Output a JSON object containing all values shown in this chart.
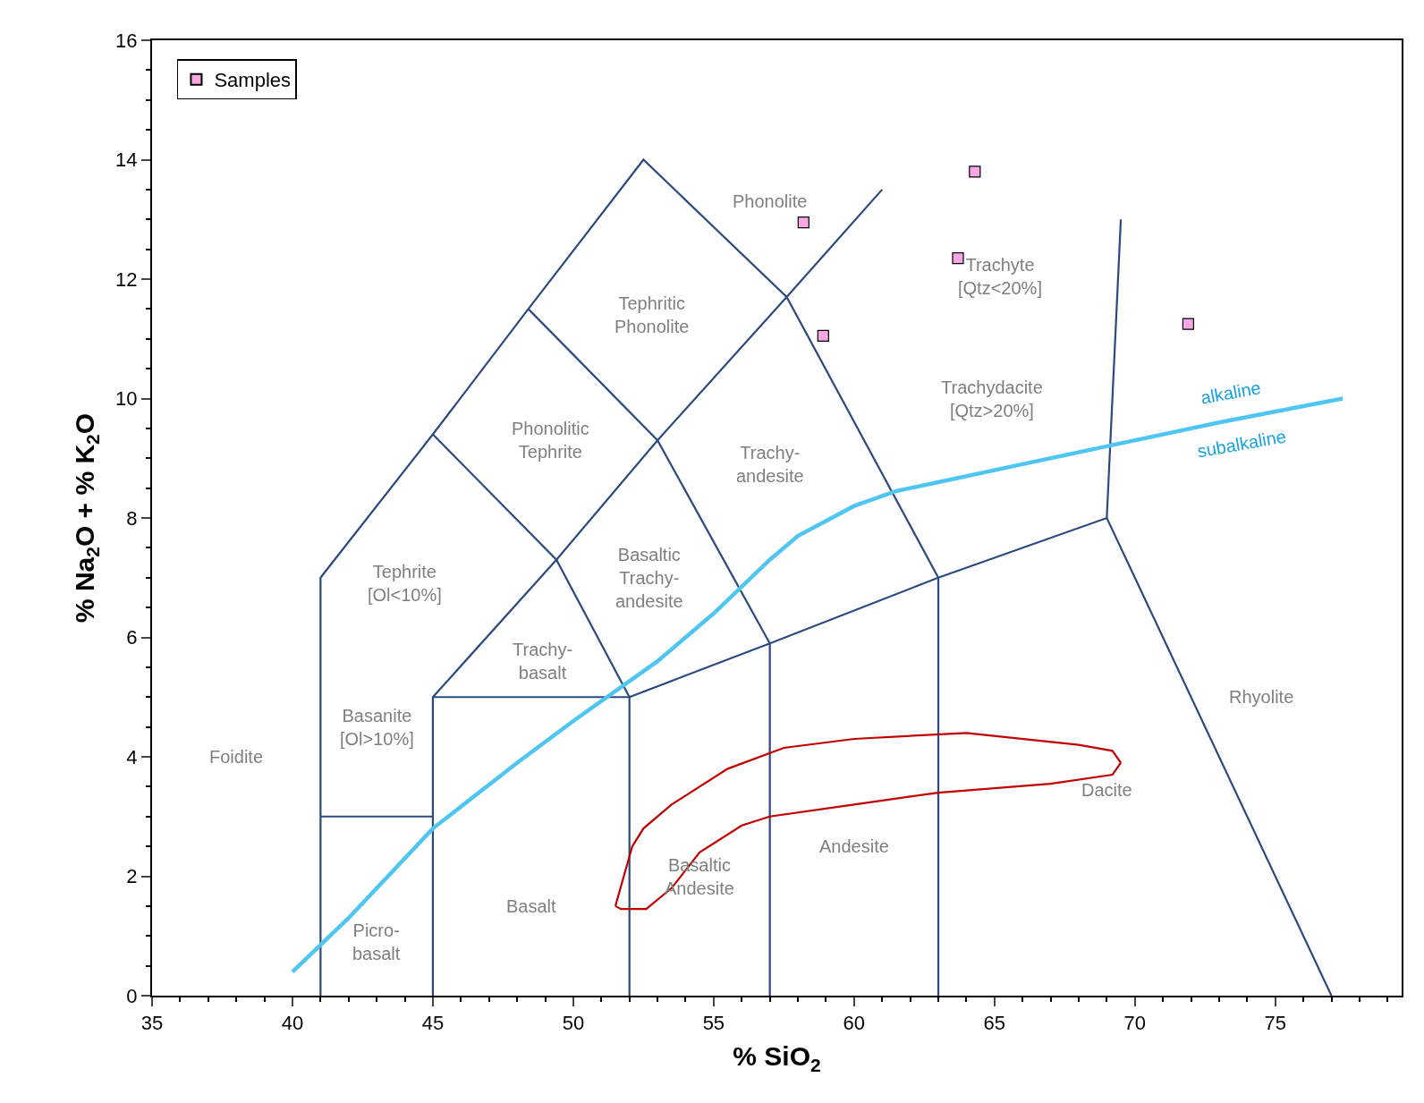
{
  "chart_data": {
    "type": "line",
    "xlabel": "% SiO$_{2}$",
    "ylabel": "% Na$_{2}$O + % K$_{2}$O",
    "xlim": [
      35,
      79.5
    ],
    "xticks": [
      35,
      40,
      45,
      50,
      55,
      60,
      65,
      70,
      75
    ],
    "ylim": [
      0,
      16
    ],
    "yticks": [
      0,
      2,
      4,
      6,
      8,
      10,
      12,
      14,
      16
    ],
    "legend": "top left",
    "line_style": "solid",
    "series": [
      {
        "type": "scatter",
        "name": "Samples",
        "marker": "square",
        "color": "#f7a8e4",
        "x": [
          58.2,
          58.9,
          63.7,
          64.3,
          71.9
        ],
        "values": [
          12.95,
          11.05,
          12.35,
          13.8,
          11.25
        ]
      },
      {
        "color": "#2a4a80",
        "x": [
          41,
          41,
          45,
          48.4,
          52.5,
          57.6,
          63
        ],
        "values": [
          0,
          7,
          9.4,
          11.5,
          14,
          11.7,
          7
        ]
      },
      {
        "color": "#2a4a80",
        "x": [
          45,
          45,
          49.4,
          53,
          57.6,
          61
        ],
        "values": [
          0,
          5,
          7.3,
          9.3,
          11.7,
          13.5
        ]
      },
      {
        "color": "#2a4a80",
        "x": [
          52,
          52,
          57,
          63,
          69,
          77
        ],
        "values": [
          0,
          5,
          5.9,
          7,
          8,
          0
        ]
      },
      {
        "color": "#2a4a80",
        "x": [
          45,
          49.4,
          52
        ],
        "values": [
          9.4,
          7.3,
          5
        ]
      },
      {
        "color": "#2a4a80",
        "x": [
          48.4,
          53,
          57
        ],
        "values": [
          11.5,
          9.3,
          5.9
        ]
      },
      {
        "color": "#2a4a80",
        "x": [
          57,
          57
        ],
        "values": [
          0,
          5.9
        ]
      },
      {
        "color": "#2a4a80",
        "x": [
          63,
          63
        ],
        "values": [
          0,
          7
        ]
      },
      {
        "color": "#2a4a80",
        "x": [
          41,
          45
        ],
        "values": [
          3,
          3
        ]
      },
      {
        "color": "#2a4a80",
        "x": [
          45,
          52
        ],
        "values": [
          5,
          5
        ]
      },
      {
        "color": "#2a4a80",
        "x": [
          69,
          69.5
        ],
        "values": [
          8,
          13
        ]
      },
      {
        "color": "#4fc6f2",
        "x": [
          40,
          42,
          45,
          48,
          50,
          53,
          55,
          57,
          58,
          60,
          61.5,
          63,
          66,
          69,
          73,
          77.4
        ],
        "values": [
          0.4,
          1.3,
          2.8,
          3.9,
          4.6,
          5.6,
          6.4,
          7.3,
          7.7,
          8.2,
          8.45,
          8.6,
          8.9,
          9.2,
          9.6,
          10
        ]
      },
      {
        "color": "#c00000",
        "x": [
          51.5,
          51.7,
          52.6,
          53.5,
          54.5,
          56,
          57,
          60,
          63,
          67,
          69.2,
          69.5
        ],
        "values": [
          1.5,
          1.45,
          1.45,
          1.8,
          2.4,
          2.85,
          3.0,
          3.2,
          3.4,
          3.55,
          3.7,
          3.9
        ]
      },
      {
        "color": "#c00000",
        "x": [
          51.5,
          51.8,
          52.1,
          52.5,
          53.5,
          55.5,
          57.5,
          60,
          64,
          68,
          69.2,
          69.5
        ],
        "values": [
          1.5,
          2.0,
          2.5,
          2.8,
          3.2,
          3.8,
          4.15,
          4.3,
          4.4,
          4.2,
          4.1,
          3.9
        ]
      }
    ],
    "annotations": [
      "Foidite",
      "Picro-\nbasalt",
      "Basalt",
      "Basaltic\nAndesite",
      "Andesite",
      "Dacite",
      "Rhyolite",
      "Basanite\n[Ol>10%]",
      "Tephrite\n[Ol<10%]",
      "Trachy-\nbasalt",
      "Basaltic\nTrachy-\nandesite",
      "Trachy-\nandesite",
      "Phonolitic\nTephrite",
      "Tephritic\nPhonolite",
      "Phonolite",
      "Trachyte\n[Qtz<20%]",
      "Trachydacite\n[Qtz>20%]",
      "alkaline",
      "subalkaline"
    ]
  }
}
